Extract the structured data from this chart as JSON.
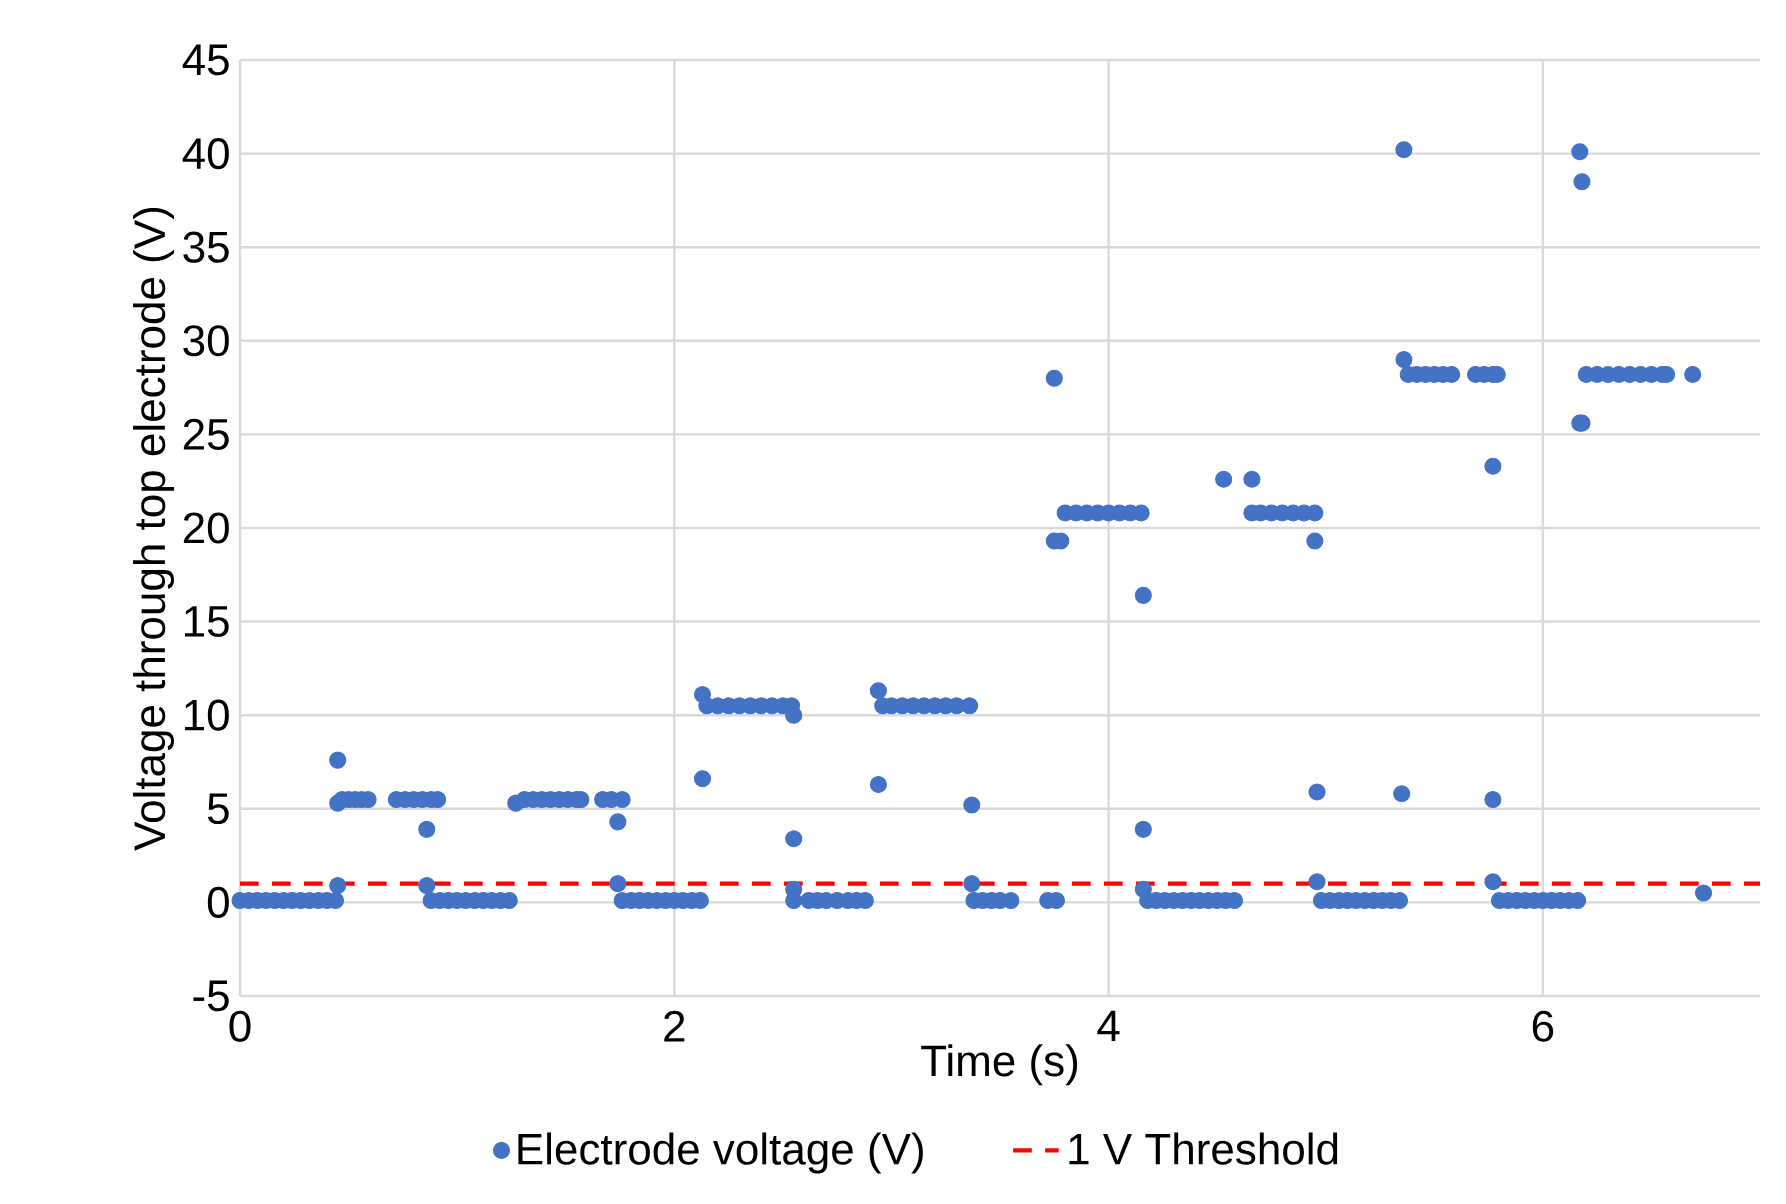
{
  "chart_data": {
    "type": "scatter",
    "xlabel": "Time (s)",
    "ylabel": "Voltage through top electrode (V)",
    "xlim": [
      0,
      7
    ],
    "xticks": [
      0,
      2,
      4,
      6
    ],
    "ylim": [
      -5,
      45
    ],
    "yticks": [
      -5,
      0,
      5,
      10,
      15,
      20,
      25,
      30,
      35,
      40,
      45
    ],
    "grid": true,
    "legend": "bottom",
    "marker": "circle",
    "series": [
      {
        "name": "Electrode voltage (V)",
        "color": "#4472c4",
        "x": [
          0,
          0.04,
          0.08,
          0.12,
          0.16,
          0.2,
          0.24,
          0.28,
          0.32,
          0.36,
          0.4,
          0.44,
          0.45,
          0.45,
          0.45,
          0.47,
          0.5,
          0.53,
          0.56,
          0.59,
          0.72,
          0.76,
          0.8,
          0.84,
          0.88,
          0.91,
          0.86,
          0.86,
          0.88,
          0.92,
          0.96,
          1.0,
          1.04,
          1.08,
          1.12,
          1.16,
          1.2,
          1.24,
          1.27,
          1.31,
          1.35,
          1.39,
          1.43,
          1.47,
          1.51,
          1.55,
          1.57,
          1.67,
          1.71,
          1.76,
          1.74,
          1.74,
          1.76,
          1.8,
          1.84,
          1.88,
          1.92,
          1.96,
          2.0,
          2.04,
          2.08,
          2.12,
          2.13,
          2.13,
          2.15,
          2.2,
          2.25,
          2.3,
          2.35,
          2.4,
          2.45,
          2.5,
          2.54,
          2.55,
          2.55,
          2.55,
          2.55,
          2.62,
          2.66,
          2.7,
          2.75,
          2.8,
          2.84,
          2.88,
          2.94,
          2.94,
          2.96,
          3.0,
          3.05,
          3.1,
          3.15,
          3.2,
          3.25,
          3.3,
          3.36,
          3.37,
          3.37,
          3.38,
          3.42,
          3.46,
          3.5,
          3.55,
          3.72,
          3.76,
          3.75,
          3.75,
          3.78,
          3.8,
          3.85,
          3.9,
          3.95,
          4.0,
          4.05,
          4.1,
          4.15,
          4.16,
          4.16,
          4.16,
          4.18,
          4.22,
          4.26,
          4.3,
          4.34,
          4.38,
          4.42,
          4.46,
          4.5,
          4.54,
          4.58,
          4.53,
          4.66,
          4.66,
          4.7,
          4.75,
          4.8,
          4.85,
          4.9,
          4.95,
          4.95,
          4.96,
          4.96,
          4.98,
          5.02,
          5.06,
          5.1,
          5.14,
          5.18,
          5.22,
          5.26,
          5.3,
          5.34,
          5.35,
          5.36,
          5.36,
          5.38,
          5.42,
          5.46,
          5.5,
          5.54,
          5.58,
          5.69,
          5.73,
          5.77,
          5.79,
          5.77,
          5.77,
          5.77,
          5.8,
          5.84,
          5.88,
          5.92,
          5.96,
          6.0,
          6.04,
          6.08,
          6.12,
          6.16,
          6.17,
          6.17,
          6.18,
          6.18,
          6.2,
          6.25,
          6.3,
          6.35,
          6.4,
          6.45,
          6.5,
          6.55,
          6.57,
          6.69,
          6.74
        ],
        "values": [
          0.1,
          0.1,
          0.1,
          0.1,
          0.1,
          0.1,
          0.1,
          0.1,
          0.1,
          0.1,
          0.1,
          0.1,
          0.9,
          7.6,
          5.3,
          5.5,
          5.5,
          5.5,
          5.5,
          5.5,
          5.5,
          5.5,
          5.5,
          5.5,
          5.5,
          5.5,
          3.9,
          0.9,
          0.1,
          0.1,
          0.1,
          0.1,
          0.1,
          0.1,
          0.1,
          0.1,
          0.1,
          0.1,
          5.3,
          5.5,
          5.5,
          5.5,
          5.5,
          5.5,
          5.5,
          5.5,
          5.5,
          5.5,
          5.5,
          5.5,
          4.3,
          1.0,
          0.1,
          0.1,
          0.1,
          0.1,
          0.1,
          0.1,
          0.1,
          0.1,
          0.1,
          0.1,
          6.6,
          11.1,
          10.5,
          10.5,
          10.5,
          10.5,
          10.5,
          10.5,
          10.5,
          10.5,
          10.5,
          10.0,
          3.4,
          0.7,
          0.1,
          0.1,
          0.1,
          0.1,
          0.1,
          0.1,
          0.1,
          0.1,
          11.3,
          6.3,
          10.5,
          10.5,
          10.5,
          10.5,
          10.5,
          10.5,
          10.5,
          10.5,
          10.5,
          5.2,
          1.0,
          0.1,
          0.1,
          0.1,
          0.1,
          0.1,
          0.1,
          0.1,
          28.0,
          19.3,
          19.3,
          20.8,
          20.8,
          20.8,
          20.8,
          20.8,
          20.8,
          20.8,
          20.8,
          16.4,
          3.9,
          0.7,
          0.1,
          0.1,
          0.1,
          0.1,
          0.1,
          0.1,
          0.1,
          0.1,
          0.1,
          0.1,
          0.1,
          22.6,
          22.6,
          20.8,
          20.8,
          20.8,
          20.8,
          20.8,
          20.8,
          20.8,
          19.3,
          5.9,
          1.1,
          0.1,
          0.1,
          0.1,
          0.1,
          0.1,
          0.1,
          0.1,
          0.1,
          0.1,
          0.1,
          5.8,
          40.2,
          29.0,
          28.2,
          28.2,
          28.2,
          28.2,
          28.2,
          28.2,
          28.2,
          28.2,
          28.2,
          28.2,
          23.3,
          5.5,
          1.1,
          0.1,
          0.1,
          0.1,
          0.1,
          0.1,
          0.1,
          0.1,
          0.1,
          0.1,
          0.1,
          40.1,
          25.6,
          38.5,
          25.6,
          28.2,
          28.2,
          28.2,
          28.2,
          28.2,
          28.2,
          28.2,
          28.2,
          28.2,
          28.2,
          0.5
        ]
      }
    ],
    "ref_lines": [
      {
        "axis": "y",
        "value": 1,
        "label": "1 V Threshold",
        "color": "#ff0000",
        "line_style": "dashed"
      }
    ]
  }
}
